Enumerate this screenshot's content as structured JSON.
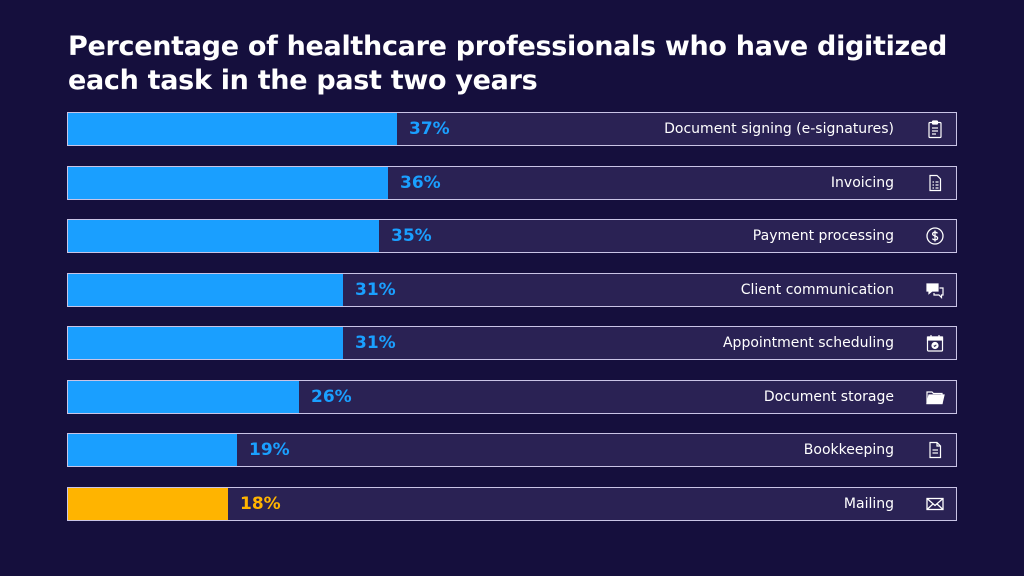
{
  "chart_data": {
    "type": "bar",
    "orientation": "horizontal",
    "title": "Percentage of healthcare professionals who have digitized each task in the past two years",
    "categories": [
      "Document signing (e-signatures)",
      "Invoicing",
      "Payment processing",
      "Client communication",
      "Appointment scheduling",
      "Document storage",
      "Bookkeeping",
      "Mailing"
    ],
    "values": [
      37,
      36,
      35,
      31,
      31,
      26,
      19,
      18
    ],
    "value_labels": [
      "37%",
      "36%",
      "35%",
      "31%",
      "31%",
      "26%",
      "19%",
      "18%"
    ],
    "icons": [
      "clipboard-icon",
      "invoice-icon",
      "dollar-coin-icon",
      "chat-bubbles-icon",
      "calendar-check-icon",
      "folder-icon",
      "document-icon",
      "envelope-icon"
    ],
    "xlim": [
      0,
      100
    ],
    "colors": [
      "#1a9fff",
      "#1a9fff",
      "#1a9fff",
      "#1a9fff",
      "#1a9fff",
      "#1a9fff",
      "#1a9fff",
      "#ffb400"
    ]
  }
}
